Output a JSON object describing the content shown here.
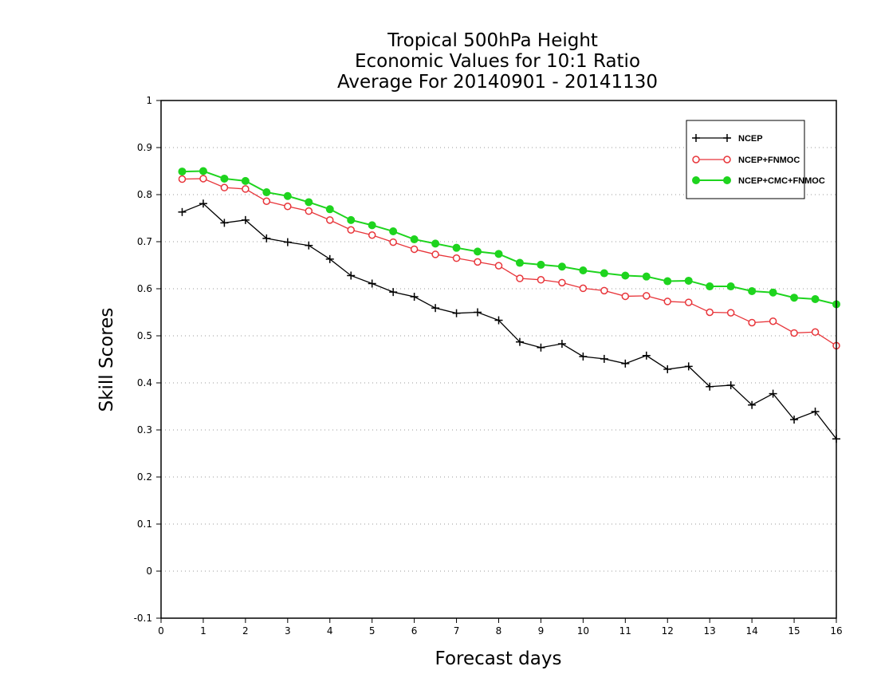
{
  "chart_data": {
    "type": "line",
    "title": [
      "Tropical 500hPa Height",
      "Economic Values for 10:1 Ratio",
      "Average For 20140901 - 20141130"
    ],
    "xlabel": "Forecast days",
    "ylabel": "Skill Scores",
    "xlim": [
      0,
      16
    ],
    "ylim": [
      -0.1,
      1
    ],
    "xticks": [
      "0",
      "1",
      "2",
      "3",
      "4",
      "5",
      "6",
      "7",
      "8",
      "9",
      "10",
      "11",
      "12",
      "13",
      "14",
      "15",
      "16"
    ],
    "yticks": [
      "-0.1",
      "0",
      "0.1",
      "0.2",
      "0.3",
      "0.4",
      "0.5",
      "0.6",
      "0.7",
      "0.8",
      "0.9",
      "1"
    ],
    "grid": "horizontal dotted",
    "legend_position": "top-right",
    "x": [
      0.5,
      1,
      1.5,
      2,
      2.5,
      3,
      3.5,
      4,
      4.5,
      5,
      5.5,
      6,
      6.5,
      7,
      7.5,
      8,
      8.5,
      9,
      9.5,
      10,
      10.5,
      11,
      11.5,
      12,
      12.5,
      13,
      13.5,
      14,
      14.5,
      15,
      15.5,
      16
    ],
    "series": [
      {
        "name": "NCEP",
        "color": "#000000",
        "marker": "plus",
        "values": [
          0.763,
          0.781,
          0.74,
          0.746,
          0.707,
          0.699,
          0.692,
          0.663,
          0.628,
          0.611,
          0.593,
          0.583,
          0.559,
          0.548,
          0.55,
          0.533,
          0.487,
          0.475,
          0.483,
          0.456,
          0.451,
          0.441,
          0.458,
          0.429,
          0.435,
          0.392,
          0.395,
          0.353,
          0.377,
          0.322,
          0.339,
          0.281
        ]
      },
      {
        "name": "NCEP+FNMOC",
        "color": "#e8353a",
        "marker": "open-circle",
        "values": [
          0.833,
          0.834,
          0.815,
          0.812,
          0.786,
          0.775,
          0.765,
          0.746,
          0.725,
          0.714,
          0.699,
          0.684,
          0.673,
          0.665,
          0.657,
          0.649,
          0.622,
          0.619,
          0.613,
          0.601,
          0.596,
          0.584,
          0.585,
          0.573,
          0.571,
          0.55,
          0.549,
          0.528,
          0.531,
          0.506,
          0.508,
          0.479
        ]
      },
      {
        "name": "NCEP+CMC+FNMOC",
        "color": "#1ed41e",
        "marker": "filled-circle",
        "values": [
          0.849,
          0.85,
          0.834,
          0.829,
          0.805,
          0.797,
          0.784,
          0.769,
          0.746,
          0.735,
          0.722,
          0.705,
          0.696,
          0.687,
          0.679,
          0.674,
          0.655,
          0.651,
          0.647,
          0.639,
          0.633,
          0.628,
          0.626,
          0.616,
          0.617,
          0.605,
          0.605,
          0.595,
          0.592,
          0.581,
          0.578,
          0.567
        ]
      }
    ]
  }
}
